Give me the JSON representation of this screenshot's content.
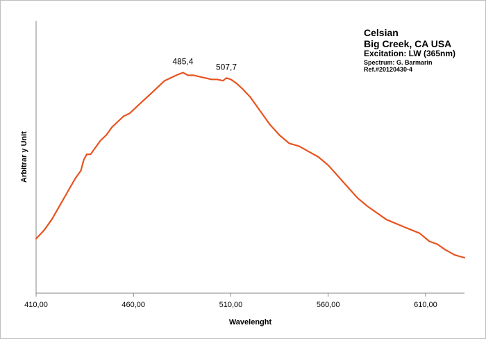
{
  "chart_data": {
    "type": "line",
    "xlabel": "Wavelenght",
    "ylabel": "Arbitrar y Unit",
    "xlim": [
      410,
      630
    ],
    "ylim": [
      0,
      1
    ],
    "x_ticks": [
      410,
      460,
      510,
      560,
      610
    ],
    "x_tick_labels": [
      "410,00",
      "460,00",
      "510,00",
      "560,00",
      "610,00"
    ],
    "grid": false,
    "info_box": {
      "line1": "Celsian",
      "line2": "Big Creek, CA USA",
      "line3": "Excitation:  LW (365nm)",
      "line4": "Spectrum: G. Barmarin",
      "line5": "Ref.#20120430-4"
    },
    "annotations": [
      {
        "text": "485,4",
        "x": 485.4,
        "y": 0.81
      },
      {
        "text": "507,7",
        "x": 507.7,
        "y": 0.79
      }
    ],
    "series": [
      {
        "color": "#E8531F",
        "x": [
          410,
          414,
          418,
          422,
          426,
          430,
          433,
          434.5,
          436,
          438,
          440,
          443,
          446,
          449,
          452,
          455,
          458,
          461,
          464,
          467,
          470,
          473,
          476,
          479,
          482,
          485.4,
          488,
          491,
          494,
          497,
          500,
          503,
          506,
          507.7,
          510,
          513,
          516,
          520,
          525,
          530,
          535,
          540,
          545,
          550,
          555,
          560,
          565,
          570,
          575,
          580,
          590,
          600,
          607,
          612,
          616,
          620,
          625,
          630
        ],
        "y": [
          0.2,
          0.23,
          0.27,
          0.32,
          0.37,
          0.42,
          0.45,
          0.49,
          0.51,
          0.51,
          0.53,
          0.56,
          0.58,
          0.61,
          0.63,
          0.65,
          0.66,
          0.68,
          0.7,
          0.72,
          0.74,
          0.76,
          0.78,
          0.79,
          0.8,
          0.81,
          0.8,
          0.8,
          0.795,
          0.79,
          0.785,
          0.785,
          0.78,
          0.79,
          0.785,
          0.77,
          0.75,
          0.72,
          0.67,
          0.62,
          0.58,
          0.55,
          0.54,
          0.52,
          0.5,
          0.47,
          0.43,
          0.39,
          0.35,
          0.32,
          0.27,
          0.24,
          0.22,
          0.19,
          0.18,
          0.16,
          0.14,
          0.13
        ]
      }
    ]
  }
}
